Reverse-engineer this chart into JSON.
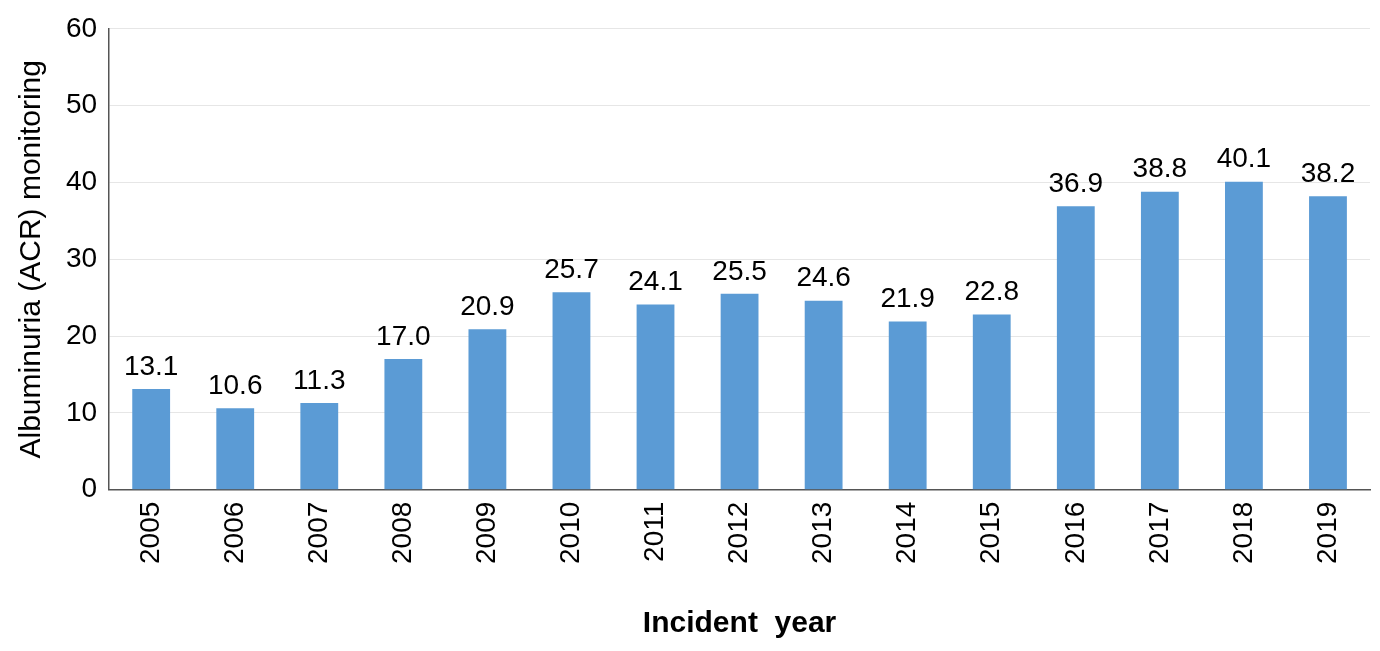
{
  "chart_data": {
    "type": "bar",
    "xlabel": "Incident  year",
    "ylabel": "Albuminuria (ACR) monitoring",
    "categories": [
      "2005",
      "2006",
      "2007",
      "2008",
      "2009",
      "2010",
      "2011",
      "2012",
      "2013",
      "2014",
      "2015",
      "2016",
      "2017",
      "2018",
      "2019"
    ],
    "values": [
      13.1,
      10.6,
      11.3,
      17.0,
      20.9,
      25.7,
      24.1,
      25.5,
      24.6,
      21.9,
      22.8,
      36.9,
      38.8,
      40.1,
      38.2
    ],
    "value_labels": [
      "13.1",
      "10.6",
      "11.3",
      "17.0",
      "20.9",
      "25.7",
      "24.1",
      "25.5",
      "24.6",
      "21.9",
      "22.8",
      "36.9",
      "38.8",
      "40.1",
      "38.2"
    ],
    "color": "#5b9bd5",
    "ylim": [
      0,
      60
    ],
    "yticks": [
      0,
      10,
      20,
      30,
      40,
      50,
      60
    ],
    "grid": "y",
    "legend": false
  }
}
